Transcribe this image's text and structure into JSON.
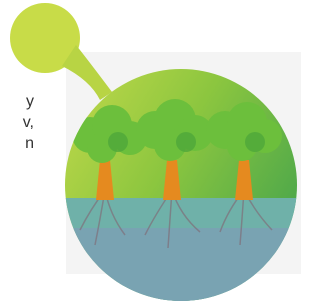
{
  "text_fragments": [
    "y",
    "v,",
    "n"
  ]
}
